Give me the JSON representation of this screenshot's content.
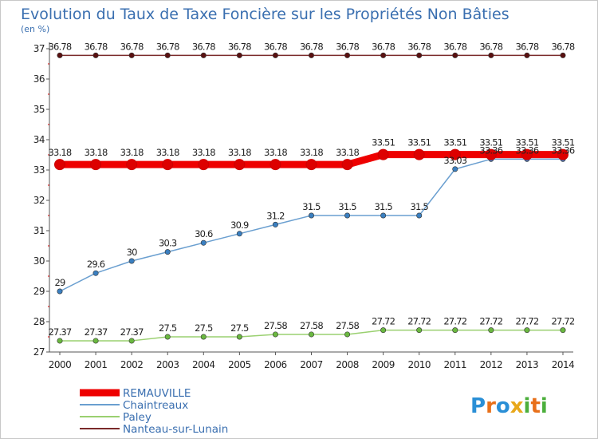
{
  "title": "Evolution du Taux de Taxe Foncière sur les Propriétés Non Bâties",
  "unit_label": "(en %)",
  "brand": {
    "name": "Proxiti",
    "letters": [
      "P",
      "r",
      "o",
      "x",
      "i",
      "t",
      "i"
    ],
    "colors": [
      "#2a8fd6",
      "#e8701a",
      "#2a8fd6",
      "#e8a81a",
      "#4caf3c",
      "#e8701a",
      "#4caf3c"
    ]
  },
  "chart_data": {
    "type": "line",
    "title": "Evolution du Taux de Taxe Foncière sur les Propriétés Non Bâties",
    "ylabel": "(en %)",
    "xlabel": "",
    "x": [
      "2000",
      "2001",
      "2002",
      "2003",
      "2004",
      "2005",
      "2006",
      "2007",
      "2008",
      "2009",
      "2010",
      "2011",
      "2012",
      "2013",
      "2014"
    ],
    "ylim": [
      27,
      37
    ],
    "yticks": [
      "27",
      "28",
      "29",
      "30",
      "31",
      "32",
      "33",
      "34",
      "35",
      "36",
      "37"
    ],
    "grid": false,
    "legend_position": "bottom-left",
    "series": [
      {
        "name": "Nanteau-sur-Lunain",
        "color": "#7a2a2a",
        "marker_color": "#5a1010",
        "width": 1.5,
        "values": [
          36.78,
          36.78,
          36.78,
          36.78,
          36.78,
          36.78,
          36.78,
          36.78,
          36.78,
          36.78,
          36.78,
          36.78,
          36.78,
          36.78,
          36.78
        ],
        "labels": [
          "36.78",
          "36.78",
          "36.78",
          "36.78",
          "36.78",
          "36.78",
          "36.78",
          "36.78",
          "36.78",
          "36.78",
          "36.78",
          "36.78",
          "36.78",
          "36.78",
          "36.78"
        ]
      },
      {
        "name": "Chaintreaux",
        "color": "#6a9fd0",
        "marker_color": "#3a7fc0",
        "width": 1.5,
        "values": [
          29,
          29.6,
          30,
          30.3,
          30.6,
          30.9,
          31.2,
          31.5,
          31.5,
          31.5,
          31.5,
          33.03,
          33.36,
          33.36,
          33.36
        ],
        "labels": [
          "29",
          "29.6",
          "30",
          "30.3",
          "30.6",
          "30.9",
          "31.2",
          "31.5",
          "31.5",
          "31.5",
          "31.5",
          "33.03",
          "33.36",
          "33.36",
          "33.36"
        ]
      },
      {
        "name": "Paley",
        "color": "#9ad070",
        "marker_color": "#6ab840",
        "width": 1.5,
        "values": [
          27.37,
          27.37,
          27.37,
          27.5,
          27.5,
          27.5,
          27.58,
          27.58,
          27.58,
          27.72,
          27.72,
          27.72,
          27.72,
          27.72,
          27.72
        ],
        "labels": [
          "27.37",
          "27.37",
          "27.37",
          "27.5",
          "27.5",
          "27.5",
          "27.58",
          "27.58",
          "27.58",
          "27.72",
          "27.72",
          "27.72",
          "27.72",
          "27.72",
          "27.72"
        ]
      },
      {
        "name": "REMAUVILLE",
        "color": "#ee0000",
        "marker_color": "#dd0000",
        "width": 9,
        "values": [
          33.18,
          33.18,
          33.18,
          33.18,
          33.18,
          33.18,
          33.18,
          33.18,
          33.18,
          33.51,
          33.51,
          33.51,
          33.51,
          33.51,
          33.51
        ],
        "labels": [
          "33.18",
          "33.18",
          "33.18",
          "33.18",
          "33.18",
          "33.18",
          "33.18",
          "33.18",
          "33.18",
          "33.51",
          "33.51",
          "33.51",
          "33.51",
          "33.51",
          "33.51"
        ]
      }
    ],
    "legend_order": [
      "REMAUVILLE",
      "Chaintreaux",
      "Paley",
      "Nanteau-sur-Lunain"
    ]
  }
}
